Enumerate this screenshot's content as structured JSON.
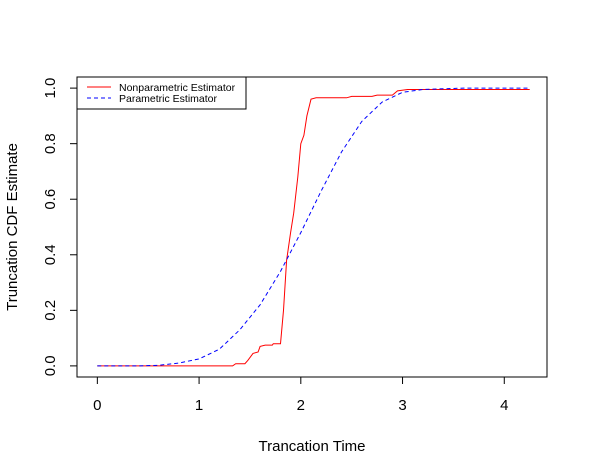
{
  "chart_data": {
    "type": "line",
    "title": "",
    "xlabel": "Trancation Time",
    "ylabel": "Truncation CDF Estimate",
    "xlim": [
      -0.2,
      4.42
    ],
    "ylim": [
      -0.04,
      1.04
    ],
    "xticks": [
      0,
      1,
      2,
      3,
      4
    ],
    "xtick_labels": [
      "0",
      "1",
      "2",
      "3",
      "4"
    ],
    "yticks": [
      0.0,
      0.2,
      0.4,
      0.6,
      0.8,
      1.0
    ],
    "ytick_labels": [
      "0.0",
      "0.2",
      "0.4",
      "0.6",
      "0.8",
      "1.0"
    ],
    "grid": false,
    "legend_position": "top-left",
    "series": [
      {
        "name": "Nonparametric Estimator",
        "color": "#ff0000",
        "style": "solid",
        "points": [
          [
            0.0,
            0.0
          ],
          [
            1.33,
            0.0
          ],
          [
            1.36,
            0.008
          ],
          [
            1.45,
            0.008
          ],
          [
            1.48,
            0.02
          ],
          [
            1.53,
            0.045
          ],
          [
            1.58,
            0.05
          ],
          [
            1.6,
            0.07
          ],
          [
            1.65,
            0.075
          ],
          [
            1.72,
            0.075
          ],
          [
            1.73,
            0.08
          ],
          [
            1.8,
            0.08
          ],
          [
            1.83,
            0.2
          ],
          [
            1.86,
            0.38
          ],
          [
            1.9,
            0.48
          ],
          [
            1.93,
            0.55
          ],
          [
            1.97,
            0.68
          ],
          [
            2.0,
            0.8
          ],
          [
            2.03,
            0.83
          ],
          [
            2.06,
            0.9
          ],
          [
            2.1,
            0.96
          ],
          [
            2.15,
            0.965
          ],
          [
            2.45,
            0.965
          ],
          [
            2.5,
            0.97
          ],
          [
            2.7,
            0.97
          ],
          [
            2.75,
            0.975
          ],
          [
            2.9,
            0.975
          ],
          [
            2.95,
            0.99
          ],
          [
            3.05,
            0.995
          ],
          [
            4.25,
            0.995
          ]
        ]
      },
      {
        "name": "Parametric Estimator",
        "color": "#0000ff",
        "style": "dashed",
        "points": [
          [
            0.0,
            0.0
          ],
          [
            0.4,
            0.0
          ],
          [
            0.6,
            0.002
          ],
          [
            0.8,
            0.01
          ],
          [
            1.0,
            0.025
          ],
          [
            1.2,
            0.06
          ],
          [
            1.4,
            0.13
          ],
          [
            1.6,
            0.22
          ],
          [
            1.8,
            0.34
          ],
          [
            2.0,
            0.48
          ],
          [
            2.2,
            0.63
          ],
          [
            2.4,
            0.77
          ],
          [
            2.6,
            0.88
          ],
          [
            2.8,
            0.95
          ],
          [
            3.0,
            0.985
          ],
          [
            3.2,
            0.995
          ],
          [
            3.6,
            1.0
          ],
          [
            4.25,
            1.0
          ]
        ]
      }
    ]
  }
}
